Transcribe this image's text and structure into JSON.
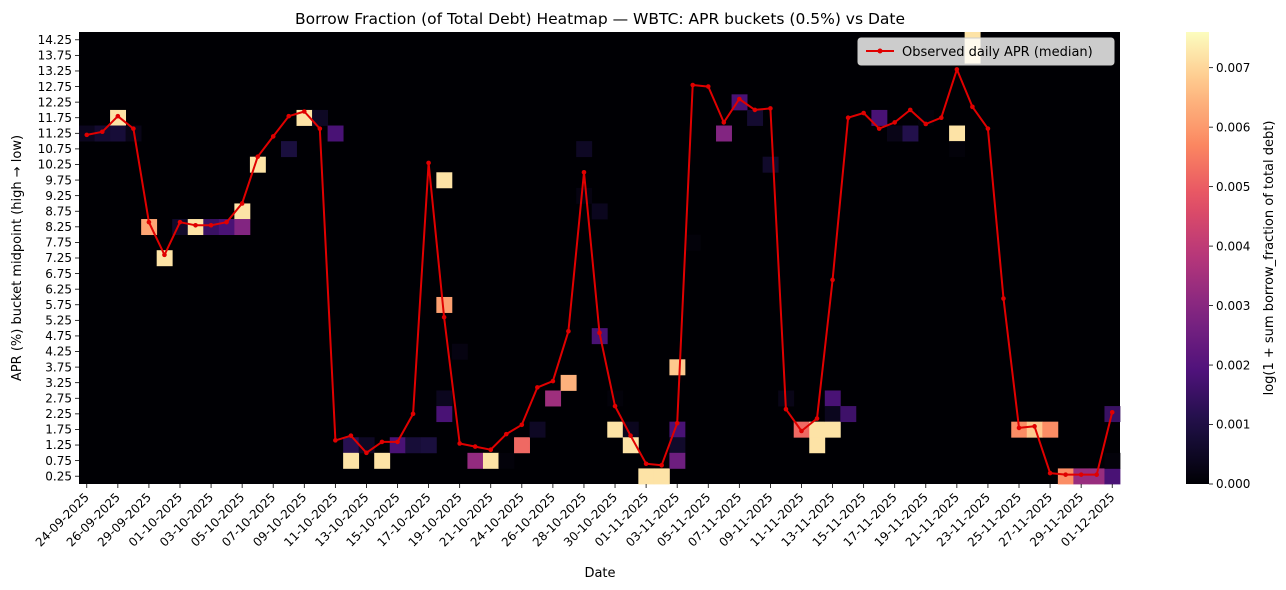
{
  "chart_data": {
    "type": "heatmap",
    "title": "Borrow Fraction (of Total Debt) Heatmap — WBTC: APR buckets (0.5%) vs Date",
    "xlabel": "Date",
    "ylabel": "APR (%) bucket midpoint (high → low)",
    "colorbar_label": "log(1 + sum borrow_fraction of total debt)",
    "colormap": "magma",
    "colorbar_range": [
      0.0,
      0.0076
    ],
    "colorbar_ticks": [
      "0.000",
      "0.001",
      "0.002",
      "0.003",
      "0.004",
      "0.005",
      "0.006",
      "0.007"
    ],
    "colorbar_tick_values": [
      0.0,
      0.001,
      0.002,
      0.003,
      0.004,
      0.005,
      0.006,
      0.007
    ],
    "legend": {
      "label": "Observed daily APR (median)",
      "position": "top-right",
      "color": "#e00000"
    },
    "y_buckets": [
      "14.25",
      "13.75",
      "13.25",
      "12.75",
      "12.25",
      "11.75",
      "11.25",
      "10.75",
      "10.25",
      "9.75",
      "9.25",
      "8.75",
      "8.25",
      "7.75",
      "7.25",
      "6.75",
      "6.25",
      "5.75",
      "5.25",
      "4.75",
      "4.25",
      "3.75",
      "3.25",
      "2.75",
      "2.25",
      "1.75",
      "1.25",
      "0.75",
      "0.25"
    ],
    "dates": [
      "24-09-2025",
      "25-09-2025",
      "26-09-2025",
      "27-09-2025",
      "29-09-2025",
      "30-09-2025",
      "01-10-2025",
      "02-10-2025",
      "03-10-2025",
      "04-10-2025",
      "05-10-2025",
      "06-10-2025",
      "07-10-2025",
      "08-10-2025",
      "09-10-2025",
      "10-10-2025",
      "11-10-2025",
      "12-10-2025",
      "13-10-2025",
      "14-10-2025",
      "15-10-2025",
      "16-10-2025",
      "17-10-2025",
      "18-10-2025",
      "19-10-2025",
      "20-10-2025",
      "21-10-2025",
      "22-10-2025",
      "24-10-2025",
      "25-10-2025",
      "26-10-2025",
      "27-10-2025",
      "28-10-2025",
      "29-10-2025",
      "30-10-2025",
      "31-10-2025",
      "01-11-2025",
      "02-11-2025",
      "03-11-2025",
      "04-11-2025",
      "05-11-2025",
      "06-11-2025",
      "07-11-2025",
      "08-11-2025",
      "09-11-2025",
      "10-11-2025",
      "11-11-2025",
      "12-11-2025",
      "13-11-2025",
      "14-11-2025",
      "15-11-2025",
      "16-11-2025",
      "17-11-2025",
      "18-11-2025",
      "19-11-2025",
      "20-11-2025",
      "21-11-2025",
      "22-11-2025",
      "23-11-2025",
      "24-11-2025",
      "25-11-2025",
      "26-11-2025",
      "27-11-2025",
      "28-11-2025",
      "29-11-2025",
      "30-11-2025",
      "01-12-2025"
    ],
    "x_tick_labels": [
      "24-09-2025",
      "26-09-2025",
      "29-09-2025",
      "01-10-2025",
      "03-10-2025",
      "05-10-2025",
      "07-10-2025",
      "09-10-2025",
      "11-10-2025",
      "13-10-2025",
      "15-10-2025",
      "17-10-2025",
      "19-10-2025",
      "21-10-2025",
      "24-10-2025",
      "26-10-2025",
      "28-10-2025",
      "30-10-2025",
      "01-11-2025",
      "03-11-2025",
      "05-11-2025",
      "07-11-2025",
      "09-11-2025",
      "11-11-2025",
      "13-11-2025",
      "15-11-2025",
      "17-11-2025",
      "19-11-2025",
      "21-11-2025",
      "23-11-2025",
      "25-11-2025",
      "27-11-2025",
      "29-11-2025",
      "01-12-2025"
    ],
    "apr_median": [
      11.2,
      11.3,
      11.8,
      11.4,
      8.4,
      7.35,
      8.4,
      8.3,
      8.3,
      8.4,
      9.0,
      10.5,
      11.15,
      11.8,
      11.95,
      11.4,
      1.4,
      1.55,
      1.0,
      1.35,
      1.35,
      2.25,
      10.3,
      5.35,
      1.3,
      1.2,
      1.1,
      1.6,
      1.9,
      3.1,
      3.3,
      4.9,
      10.0,
      4.85,
      2.5,
      1.55,
      0.65,
      0.6,
      1.95,
      12.8,
      12.75,
      11.6,
      12.35,
      12.0,
      12.05,
      2.4,
      1.7,
      2.1,
      6.55,
      11.75,
      11.9,
      11.4,
      11.6,
      12.0,
      11.55,
      11.75,
      13.3,
      12.1,
      11.4,
      5.95,
      1.8,
      1.85,
      0.35,
      0.3,
      0.3,
      0.3,
      2.3
    ],
    "cells": [
      {
        "date": "24-09-2025",
        "apr": "11.25",
        "value": 0.0004
      },
      {
        "date": "25-09-2025",
        "apr": "11.25",
        "value": 0.0007
      },
      {
        "date": "26-09-2025",
        "apr": "11.75",
        "value": 0.0072
      },
      {
        "date": "26-09-2025",
        "apr": "11.25",
        "value": 0.0008
      },
      {
        "date": "27-09-2025",
        "apr": "11.25",
        "value": 0.0003
      },
      {
        "date": "29-09-2025",
        "apr": "8.25",
        "value": 0.0062
      },
      {
        "date": "30-09-2025",
        "apr": "7.25",
        "value": 0.0072
      },
      {
        "date": "01-10-2025",
        "apr": "8.25",
        "value": 0.0006
      },
      {
        "date": "02-10-2025",
        "apr": "8.25",
        "value": 0.0072
      },
      {
        "date": "03-10-2025",
        "apr": "8.25",
        "value": 0.0015
      },
      {
        "date": "04-10-2025",
        "apr": "8.25",
        "value": 0.0018
      },
      {
        "date": "05-10-2025",
        "apr": "8.75",
        "value": 0.0072
      },
      {
        "date": "05-10-2025",
        "apr": "8.25",
        "value": 0.0029
      },
      {
        "date": "06-10-2025",
        "apr": "10.25",
        "value": 0.0072
      },
      {
        "date": "08-10-2025",
        "apr": "10.75",
        "value": 0.0009
      },
      {
        "date": "09-10-2025",
        "apr": "11.75",
        "value": 0.0072
      },
      {
        "date": "10-10-2025",
        "apr": "11.75",
        "value": 0.0005
      },
      {
        "date": "11-10-2025",
        "apr": "11.25",
        "value": 0.0018
      },
      {
        "date": "12-10-2025",
        "apr": "1.25",
        "value": 0.0012
      },
      {
        "date": "12-10-2025",
        "apr": "0.75",
        "value": 0.0072
      },
      {
        "date": "13-10-2025",
        "apr": "1.25",
        "value": 0.0005
      },
      {
        "date": "14-10-2025",
        "apr": "0.75",
        "value": 0.0072
      },
      {
        "date": "15-10-2025",
        "apr": "1.25",
        "value": 0.0018
      },
      {
        "date": "16-10-2025",
        "apr": "1.25",
        "value": 0.0008
      },
      {
        "date": "17-10-2025",
        "apr": "1.25",
        "value": 0.0009
      },
      {
        "date": "18-10-2025",
        "apr": "9.75",
        "value": 0.0072
      },
      {
        "date": "18-10-2025",
        "apr": "5.75",
        "value": 0.0061
      },
      {
        "date": "18-10-2025",
        "apr": "2.75",
        "value": 0.0004
      },
      {
        "date": "18-10-2025",
        "apr": "2.25",
        "value": 0.0018
      },
      {
        "date": "19-10-2025",
        "apr": "4.25",
        "value": 0.0002
      },
      {
        "date": "20-10-2025",
        "apr": "0.75",
        "value": 0.0032
      },
      {
        "date": "21-10-2025",
        "apr": "0.75",
        "value": 0.0072
      },
      {
        "date": "22-10-2025",
        "apr": "0.75",
        "value": 0.0001
      },
      {
        "date": "24-10-2025",
        "apr": "1.25",
        "value": 0.0052
      },
      {
        "date": "25-10-2025",
        "apr": "1.75",
        "value": 0.0005
      },
      {
        "date": "26-10-2025",
        "apr": "2.75",
        "value": 0.0034
      },
      {
        "date": "27-10-2025",
        "apr": "3.25",
        "value": 0.0064
      },
      {
        "date": "28-10-2025",
        "apr": "10.75",
        "value": 0.0005
      },
      {
        "date": "28-10-2025",
        "apr": "9.25",
        "value": 0.0002
      },
      {
        "date": "29-10-2025",
        "apr": "8.75",
        "value": 0.0004
      },
      {
        "date": "29-10-2025",
        "apr": "4.75",
        "value": 0.0018
      },
      {
        "date": "30-10-2025",
        "apr": "1.75",
        "value": 0.0072
      },
      {
        "date": "30-10-2025",
        "apr": "2.75",
        "value": 0.0001
      },
      {
        "date": "31-10-2025",
        "apr": "1.75",
        "value": 0.0004
      },
      {
        "date": "31-10-2025",
        "apr": "1.25",
        "value": 0.0072
      },
      {
        "date": "01-11-2025",
        "apr": "0.25",
        "value": 0.0072
      },
      {
        "date": "02-11-2025",
        "apr": "0.25",
        "value": 0.0072
      },
      {
        "date": "03-11-2025",
        "apr": "3.75",
        "value": 0.0068
      },
      {
        "date": "03-11-2025",
        "apr": "1.75",
        "value": 0.0018
      },
      {
        "date": "03-11-2025",
        "apr": "1.25",
        "value": 0.0006
      },
      {
        "date": "03-11-2025",
        "apr": "0.75",
        "value": 0.0025
      },
      {
        "date": "04-11-2025",
        "apr": "7.75",
        "value": 0.0001
      },
      {
        "date": "06-11-2025",
        "apr": "11.25",
        "value": 0.0029
      },
      {
        "date": "07-11-2025",
        "apr": "12.25",
        "value": 0.0018
      },
      {
        "date": "08-11-2025",
        "apr": "11.75",
        "value": 0.0007
      },
      {
        "date": "09-11-2025",
        "apr": "10.25",
        "value": 0.0006
      },
      {
        "date": "10-11-2025",
        "apr": "2.75",
        "value": 0.0003
      },
      {
        "date": "11-11-2025",
        "apr": "1.75",
        "value": 0.0052
      },
      {
        "date": "12-11-2025",
        "apr": "1.75",
        "value": 0.0072
      },
      {
        "date": "12-11-2025",
        "apr": "1.25",
        "value": 0.0072
      },
      {
        "date": "13-11-2025",
        "apr": "2.75",
        "value": 0.0018
      },
      {
        "date": "13-11-2025",
        "apr": "2.25",
        "value": 0.0004
      },
      {
        "date": "13-11-2025",
        "apr": "1.75",
        "value": 0.0072
      },
      {
        "date": "14-11-2025",
        "apr": "2.25",
        "value": 0.0016
      },
      {
        "date": "16-11-2025",
        "apr": "11.75",
        "value": 0.0018
      },
      {
        "date": "17-11-2025",
        "apr": "11.25",
        "value": 0.0003
      },
      {
        "date": "18-11-2025",
        "apr": "11.25",
        "value": 0.0011
      },
      {
        "date": "19-11-2025",
        "apr": "11.75",
        "value": 0.0001
      },
      {
        "date": "21-11-2025",
        "apr": "11.25",
        "value": 0.0072
      },
      {
        "date": "21-11-2025",
        "apr": "10.75",
        "value": 0.0001
      },
      {
        "date": "22-11-2025",
        "apr": "14.25",
        "value": 0.0072
      },
      {
        "date": "22-11-2025",
        "apr": "13.75",
        "value": 0.0072
      },
      {
        "date": "25-11-2025",
        "apr": "1.75",
        "value": 0.0058
      },
      {
        "date": "26-11-2025",
        "apr": "1.75",
        "value": 0.0068
      },
      {
        "date": "27-11-2025",
        "apr": "1.75",
        "value": 0.0058
      },
      {
        "date": "28-11-2025",
        "apr": "0.25",
        "value": 0.0058
      },
      {
        "date": "29-11-2025",
        "apr": "0.25",
        "value": 0.0033
      },
      {
        "date": "30-11-2025",
        "apr": "0.25",
        "value": 0.0033
      },
      {
        "date": "01-12-2025",
        "apr": "0.25",
        "value": 0.0018
      },
      {
        "date": "01-12-2025",
        "apr": "2.25",
        "value": 0.0015
      },
      {
        "date": "01-12-2025",
        "apr": "0.75",
        "value": 0.0001
      }
    ]
  }
}
